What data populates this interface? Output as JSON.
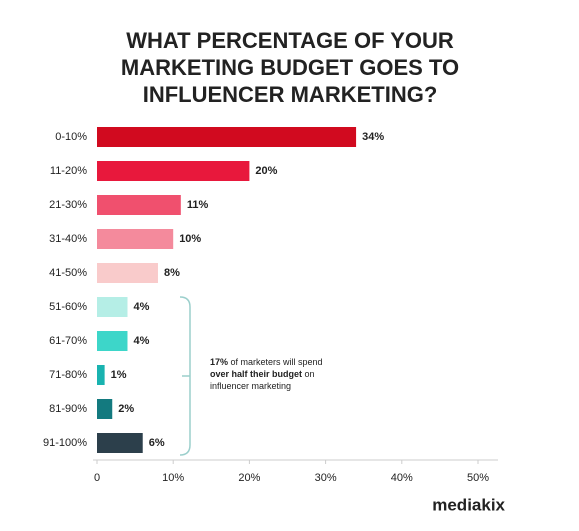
{
  "chart_data": {
    "type": "hbar",
    "title": [
      "WHAT PERCENTAGE OF YOUR",
      "MARKETING BUDGET GOES TO",
      "INFLUENCER MARKETING?"
    ],
    "categories": [
      "0-10%",
      "11-20%",
      "21-30%",
      "31-40%",
      "41-50%",
      "51-60%",
      "61-70%",
      "71-80%",
      "81-90%",
      "91-100%"
    ],
    "values": [
      34,
      20,
      11,
      10,
      8,
      4,
      4,
      1,
      2,
      6
    ],
    "value_labels": [
      "34%",
      "20%",
      "11%",
      "10%",
      "8%",
      "4%",
      "4%",
      "1%",
      "2%",
      "6%"
    ],
    "colors": [
      "#d10a1f",
      "#e8183c",
      "#f0506e",
      "#f48a9c",
      "#f9cbcb",
      "#b5eee6",
      "#3dd6c9",
      "#19b3b0",
      "#137a7f",
      "#2c3f4b"
    ],
    "xlim": [
      0,
      50
    ],
    "xticks": [
      0,
      {
        "value": 10,
        "label": "10%"
      },
      {
        "value": 20,
        "label": "20%"
      },
      {
        "value": 30,
        "label": "30%"
      },
      {
        "value": 40,
        "label": "40%"
      },
      {
        "value": 50,
        "label": "50%"
      }
    ],
    "grid": false,
    "annotation": {
      "parts": [
        {
          "text": "17%",
          "bold": true
        },
        {
          "text": " of marketers will spend",
          "bold": false
        },
        {
          "text": "over half their budget",
          "bold": true
        },
        {
          "text": " on",
          "bold": false
        },
        {
          "text": "influencer marketing",
          "bold": false
        }
      ]
    },
    "logo": "mediakix"
  }
}
